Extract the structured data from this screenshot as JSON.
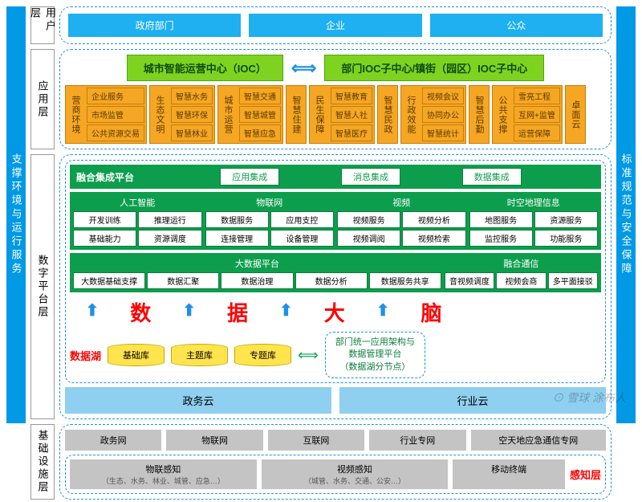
{
  "sidebars": {
    "left": "支撑环境与运行服务",
    "right": "标准规范与安全保障"
  },
  "layers": {
    "user": {
      "label": "用户层",
      "items": [
        "政府部门",
        "企业",
        "公众"
      ]
    },
    "app": {
      "label": "应用层",
      "top_left": "城市智能运营中心（IOC）",
      "top_right": "部门IOC子中心/镇街（园区）IOC子中心",
      "groups": [
        {
          "v": "营商环境",
          "cells": [
            "企业服务",
            "市场监管",
            "公共资源交易"
          ]
        },
        {
          "v": "生态文明",
          "cells": [
            "智慧水务",
            "智慧环保",
            "智慧林业"
          ]
        },
        {
          "v": "城市运营",
          "cells": [
            "智慧交通",
            "智慧城管",
            "智慧应急"
          ]
        },
        {
          "v": "智慧住建",
          "cells": []
        },
        {
          "v": "民生保障",
          "cells": [
            "智慧教育",
            "智慧人社",
            "智慧医疗"
          ]
        },
        {
          "v": "智慧民政",
          "cells": []
        },
        {
          "v": "行政效能",
          "cells": [
            "视频会议",
            "协同办公",
            "智慧统计"
          ]
        },
        {
          "v": "智慧后勤",
          "cells": []
        },
        {
          "v": "公共支撑",
          "cells": [
            "雪亮工程",
            "互网+监管",
            "运营保障"
          ]
        },
        {
          "v": "卓面云",
          "cells": []
        }
      ]
    },
    "platform": {
      "label": "数字平台层",
      "fusion": {
        "title": "融合集成平台",
        "btns": [
          "应用集成",
          "消息集成",
          "数据集成"
        ]
      },
      "row2": [
        {
          "t": "人工智能",
          "r": [
            [
              "开发训练",
              "推理运行"
            ],
            [
              "基础能力",
              "资源调度"
            ]
          ]
        },
        {
          "t": "物联网",
          "r": [
            [
              "数据服务",
              "应用支控"
            ],
            [
              "连接管理",
              "设备管理"
            ]
          ]
        },
        {
          "t": "视频",
          "r": [
            [
              "视频服务",
              "视频分析"
            ],
            [
              "视频调阅",
              "视频检索"
            ]
          ]
        },
        {
          "t": "时空地理信息",
          "r": [
            [
              "地图服务",
              "资源服务"
            ],
            [
              "监控服务",
              "功能服务"
            ]
          ]
        }
      ],
      "row3": {
        "left": {
          "t": "大数据平台",
          "cells": [
            "大数据基础支撑",
            "数据汇聚",
            "数据治理",
            "数据分析",
            "数据服务共享"
          ]
        },
        "right": {
          "t": "融合通信",
          "cells": [
            "音视频调度",
            "视频会商",
            "多平面接驳"
          ]
        }
      },
      "bigtext": [
        "数",
        "据",
        "大",
        "脑"
      ],
      "datalake": {
        "label": "数据湖",
        "cyls": [
          "基础库",
          "主题库",
          "专题库"
        ],
        "dept": "部门统一应用架构与\n数据管理平台\n（数据湖分节点）"
      },
      "clouds": [
        "政务云",
        "行业云"
      ]
    },
    "infra": {
      "label": "基础设施层",
      "nets": [
        "政务网",
        "物联网",
        "互联网",
        "行业专网",
        "空天地应急通信专网"
      ],
      "sense": {
        "label": "感知层",
        "boxes": [
          {
            "t": "物联感知",
            "s": "（生态、水务、林业、城管、应急…）"
          },
          {
            "t": "视频感知",
            "s": "（城管、水务、交通、公安…）"
          },
          {
            "t": "移动终端",
            "s": ""
          }
        ]
      }
    }
  },
  "watermark": "⊙ 雪球  涂布人",
  "colors": {
    "blue": "#1eb0f0",
    "dashblue": "#1e90e6",
    "green_btn": "#7ed321",
    "orange": "#f5a623",
    "green": "#0d9e4d",
    "lightblue": "#8fcff0",
    "gray": "#c4c4c4",
    "yellow": "#ffe44d",
    "red": "#ff0000"
  }
}
